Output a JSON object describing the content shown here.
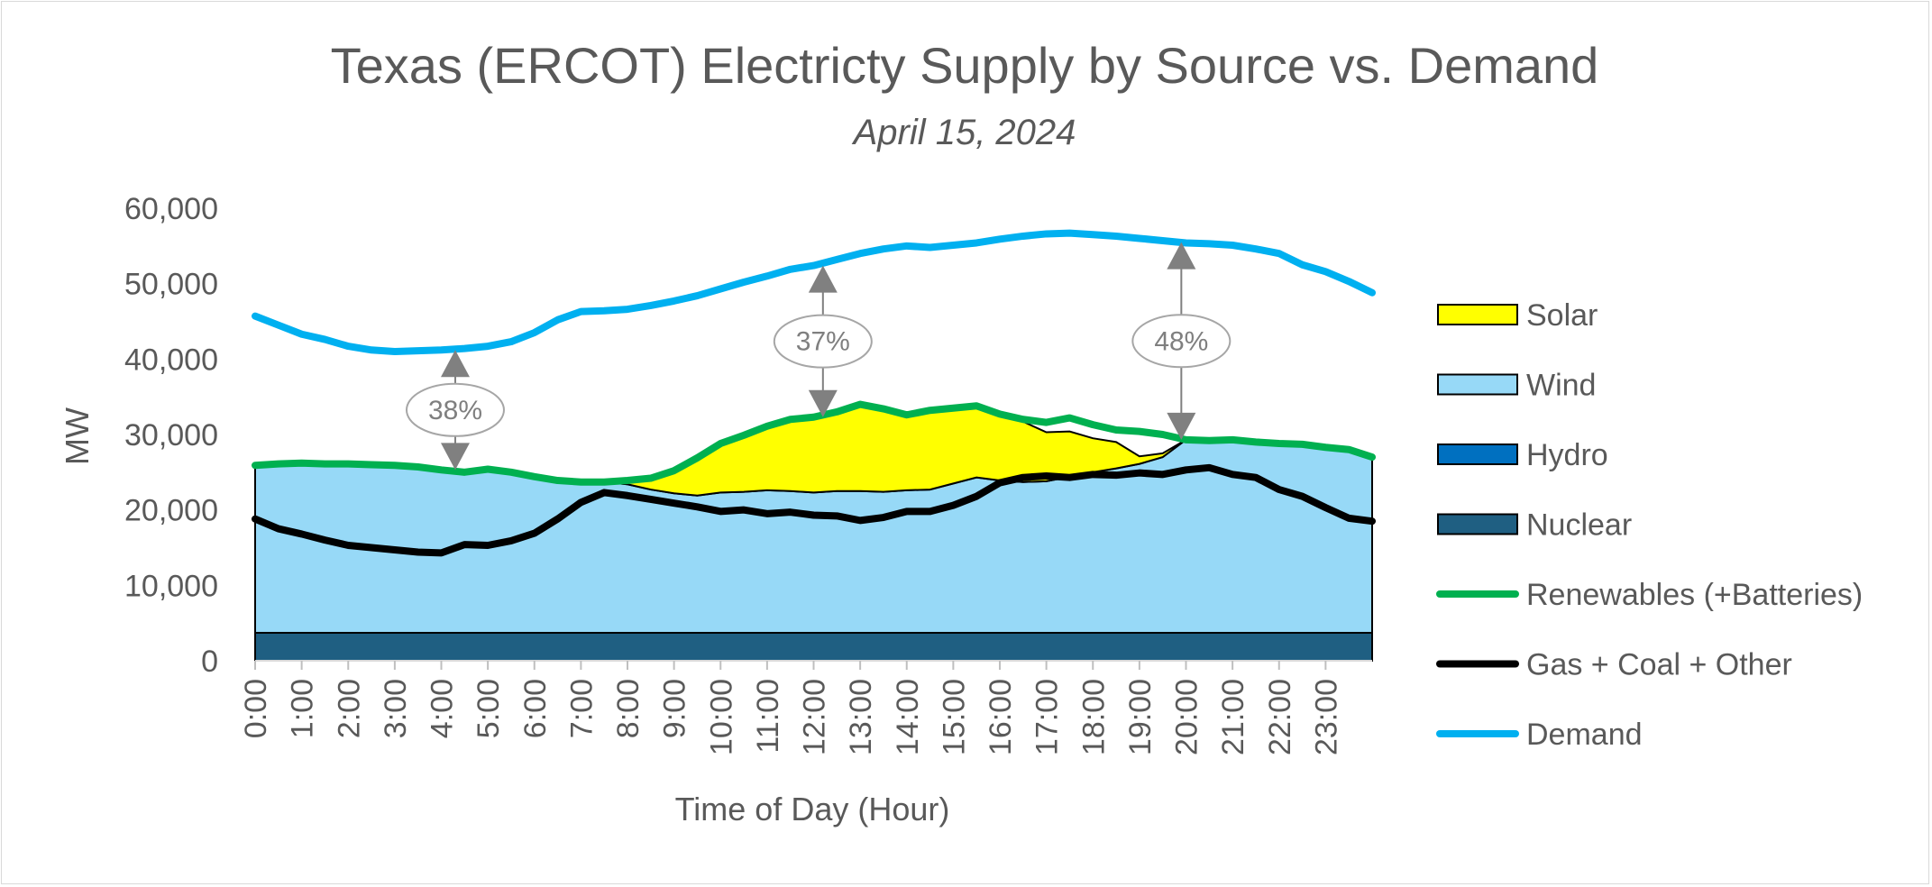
{
  "chart_data": {
    "type": "area",
    "title": "Texas (ERCOT) Electricty Supply by Source vs. Demand",
    "subtitle": "April 15, 2024",
    "xlabel": "Time of Day (Hour)",
    "ylabel": "MW",
    "xlim": [
      0,
      24
    ],
    "ylim": [
      0,
      60000
    ],
    "yticks": [
      0,
      10000,
      20000,
      30000,
      40000,
      50000,
      60000
    ],
    "ytick_labels": [
      "0",
      "10,000",
      "20,000",
      "30,000",
      "40,000",
      "50,000",
      "60,000"
    ],
    "xtick_labels": [
      "0:00",
      "1:00",
      "2:00",
      "3:00",
      "4:00",
      "5:00",
      "6:00",
      "7:00",
      "8:00",
      "9:00",
      "10:00",
      "11:00",
      "12:00",
      "13:00",
      "14:00",
      "15:00",
      "16:00",
      "17:00",
      "18:00",
      "19:00",
      "20:00",
      "21:00",
      "22:00",
      "23:00"
    ],
    "legend_position": "right",
    "hours": [
      0,
      0.5,
      1,
      1.5,
      2,
      2.5,
      3,
      3.5,
      4,
      4.5,
      5,
      5.5,
      6,
      6.5,
      7,
      7.5,
      8,
      8.5,
      9,
      9.5,
      10,
      10.5,
      11,
      11.5,
      12,
      12.5,
      13,
      13.5,
      14,
      14.5,
      15,
      15.5,
      16,
      16.5,
      17,
      17.5,
      18,
      18.5,
      19,
      19.5,
      20,
      20.5,
      21,
      21.5,
      22,
      22.5,
      23,
      23.5,
      24
    ],
    "series": [
      {
        "name": "Solar",
        "kind": "area",
        "color": "#ffff00",
        "values": [
          0,
          0,
          0,
          0,
          0,
          0,
          0,
          0,
          0,
          0,
          0,
          0,
          0,
          0,
          0,
          0,
          500,
          1500,
          3000,
          5000,
          6500,
          7500,
          8500,
          9500,
          10000,
          10500,
          11500,
          11000,
          10000,
          10500,
          10000,
          9500,
          8500,
          8000,
          6500,
          6000,
          4500,
          3500,
          1000,
          500,
          0,
          0,
          0,
          0,
          0,
          0,
          0,
          0,
          0
        ]
      },
      {
        "name": "Wind",
        "kind": "area",
        "color": "#97d9f7",
        "values": [
          22200,
          22400,
          22500,
          22400,
          22400,
          22300,
          22200,
          22000,
          21600,
          21300,
          21700,
          21300,
          20700,
          20200,
          20000,
          20000,
          19700,
          19000,
          18500,
          18200,
          18600,
          18700,
          18900,
          18800,
          18600,
          18800,
          18800,
          18700,
          18900,
          19000,
          19800,
          20600,
          20200,
          20000,
          20100,
          20700,
          21300,
          21800,
          22400,
          23300,
          25600,
          25500,
          25600,
          25500,
          25300,
          25200,
          24800,
          24500,
          23300
        ]
      },
      {
        "name": "Hydro",
        "kind": "area",
        "color": "#0070c0",
        "values": [
          0,
          0,
          0,
          0,
          0,
          0,
          0,
          0,
          0,
          0,
          0,
          0,
          0,
          0,
          0,
          0,
          0,
          0,
          0,
          0,
          0,
          0,
          0,
          0,
          0,
          0,
          0,
          0,
          0,
          0,
          0,
          0,
          0,
          0,
          0,
          0,
          0,
          0,
          0,
          0,
          0,
          0,
          0,
          0,
          0,
          0,
          0,
          0,
          0
        ]
      },
      {
        "name": "Nuclear",
        "kind": "area",
        "color": "#1f5f82",
        "values": [
          3700,
          3700,
          3700,
          3700,
          3700,
          3700,
          3700,
          3700,
          3700,
          3700,
          3700,
          3700,
          3700,
          3700,
          3700,
          3700,
          3700,
          3700,
          3700,
          3700,
          3700,
          3700,
          3700,
          3700,
          3700,
          3700,
          3700,
          3700,
          3700,
          3700,
          3700,
          3700,
          3700,
          3700,
          3700,
          3700,
          3700,
          3700,
          3700,
          3700,
          3700,
          3700,
          3700,
          3700,
          3700,
          3700,
          3700,
          3700,
          3700
        ]
      },
      {
        "name": "Renewables (+Batteries)",
        "kind": "line",
        "color": "#00b050",
        "values": [
          25900,
          26100,
          26200,
          26100,
          26100,
          26000,
          25900,
          25700,
          25300,
          25000,
          25400,
          25000,
          24400,
          23900,
          23700,
          23700,
          23900,
          24200,
          25200,
          26900,
          28800,
          29900,
          31100,
          32000,
          32300,
          33000,
          34000,
          33400,
          32600,
          33200,
          33500,
          33800,
          32700,
          32000,
          31600,
          32200,
          31300,
          30600,
          30400,
          30000,
          29300,
          29200,
          29300,
          29000,
          28800,
          28700,
          28300,
          28000,
          27000
        ]
      },
      {
        "name": "Gas + Coal + Other",
        "kind": "line",
        "color": "#000000",
        "values": [
          18800,
          17500,
          16800,
          16000,
          15300,
          15000,
          14700,
          14400,
          14300,
          15400,
          15300,
          15900,
          16900,
          18800,
          21000,
          22300,
          21900,
          21400,
          20900,
          20400,
          19800,
          20000,
          19500,
          19700,
          19300,
          19200,
          18600,
          19000,
          19800,
          19800,
          20600,
          21800,
          23600,
          24300,
          24500,
          24300,
          24700,
          24600,
          24900,
          24700,
          25300,
          25600,
          24700,
          24300,
          22700,
          21800,
          20300,
          18900,
          18500
        ]
      },
      {
        "name": "Demand",
        "kind": "line",
        "color": "#00b0f0",
        "values": [
          45700,
          44500,
          43300,
          42600,
          41700,
          41200,
          41000,
          41100,
          41200,
          41400,
          41700,
          42300,
          43500,
          45200,
          46300,
          46400,
          46600,
          47100,
          47700,
          48400,
          49300,
          50200,
          51000,
          51900,
          52400,
          53200,
          54000,
          54600,
          55000,
          54800,
          55100,
          55400,
          55900,
          56300,
          56600,
          56700,
          56500,
          56300,
          56000,
          55700,
          55400,
          55300,
          55100,
          54600,
          54000,
          52500,
          51600,
          50300,
          48800
        ]
      }
    ],
    "annotations": [
      {
        "text": "38%",
        "hour": 4.3,
        "from_mw": 25300,
        "to_mw": 41200
      },
      {
        "text": "37%",
        "hour": 12.2,
        "from_mw": 32300,
        "to_mw": 52400
      },
      {
        "text": "48%",
        "hour": 19.9,
        "from_mw": 29300,
        "to_mw": 55500
      }
    ]
  }
}
